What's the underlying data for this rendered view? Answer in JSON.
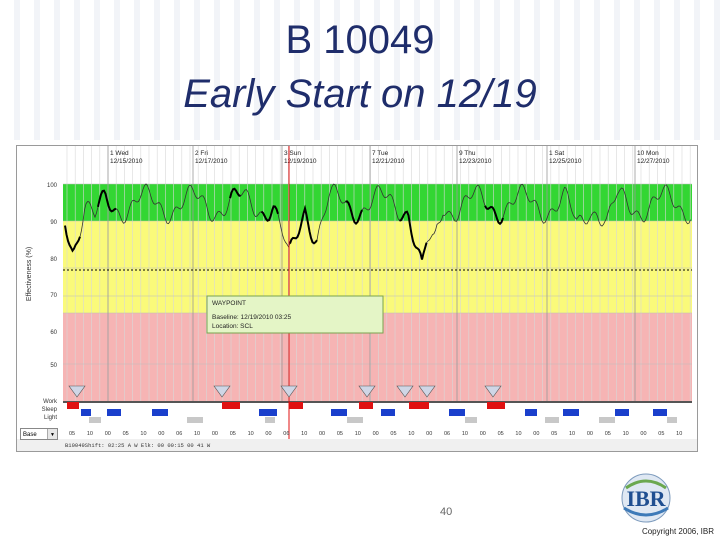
{
  "slide": {
    "title_line1": "B 10049",
    "title_line2": "Early Start on 12/19",
    "page_number": "40",
    "copyright": "Copyright 2006, IBR",
    "logo_text": "IBR"
  },
  "app": {
    "y_axis_label": "Effectiveness (%)",
    "y_ticks": [
      "100",
      "90",
      "80",
      "70",
      "60",
      "50"
    ],
    "row_labels": [
      "Work",
      "Sleep",
      "Light"
    ],
    "select_value": "Base",
    "status_bar": "B10049Shift: 02:25 A W Elk: 00 00:15 00 41 W",
    "days": [
      {
        "day": "1 Wed",
        "date": "12/15/2010"
      },
      {
        "day": "2 Fri",
        "date": "12/17/2010"
      },
      {
        "day": "3 Sun",
        "date": "12/19/2010"
      },
      {
        "day": "7 Tue",
        "date": "12/21/2010"
      },
      {
        "day": "9 Thu",
        "date": "12/23/2010"
      },
      {
        "day": "1 Sat",
        "date": "12/25/2010"
      },
      {
        "day": "10 Mon",
        "date": "12/27/2010"
      }
    ],
    "time_ticks": [
      "05",
      "10",
      "00",
      "05",
      "10",
      "00",
      "06",
      "10",
      "00",
      "05",
      "10",
      "00",
      "06",
      "10",
      "00",
      "05",
      "10",
      "00",
      "05",
      "10",
      "00",
      "06",
      "10",
      "00",
      "05",
      "10",
      "00",
      "05",
      "10",
      "00",
      "05",
      "10",
      "00",
      "05",
      "10"
    ],
    "waypoint": {
      "title": "WAYPOINT",
      "baseline": "Baseline: 12/19/2010 03:25",
      "location": "Location: SCL"
    },
    "colors": {
      "green": "#33d633",
      "yellow": "#fafa7a",
      "pink": "#f6b4b4",
      "cursor": "#e01010",
      "sleep_blue": "#1a3fcc",
      "work_red": "#e01010"
    }
  }
}
